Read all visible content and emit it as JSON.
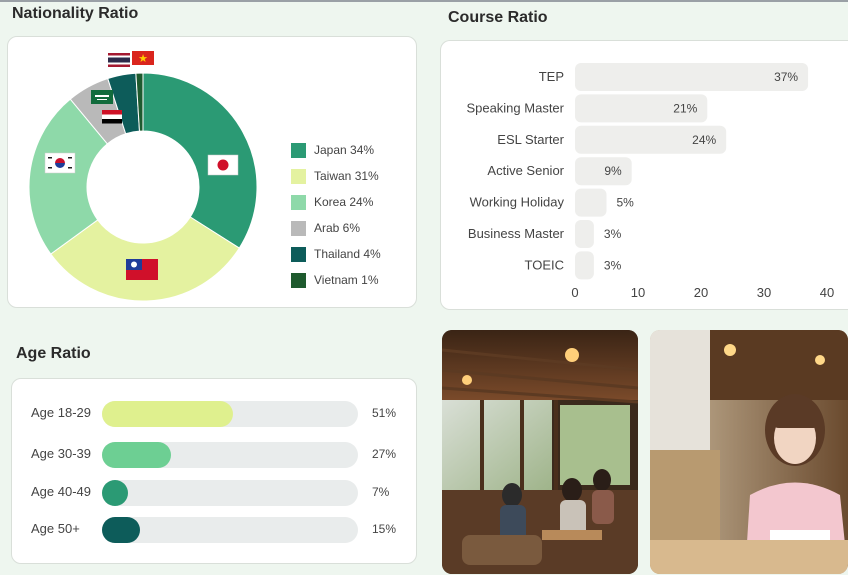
{
  "nationality": {
    "title": "Nationality Ratio",
    "chart_data": {
      "type": "pie",
      "title": "Nationality Ratio",
      "labels": [
        "Japan",
        "Taiwan",
        "Korea",
        "Arab",
        "Thailand",
        "Vietnam"
      ],
      "values": [
        34,
        31,
        24,
        6,
        4,
        1
      ],
      "legend": [
        "Japan 34%",
        "Taiwan 31%",
        "Korea 24%",
        "Arab 6%",
        "Thailand 4%",
        "Vietnam 1%"
      ],
      "colors": [
        "#2b9a74",
        "#e4f2a0",
        "#8ed9a9",
        "#b9b9b9",
        "#0d5c5a",
        "#1e5a2e"
      ],
      "flag_icons": [
        "japan-flag-icon",
        "taiwan-flag-icon",
        "korea-flag-icon",
        "saudi-flag-icon",
        "egypt-flag-icon",
        "thailand-flag-icon",
        "vietnam-flag-icon"
      ]
    }
  },
  "course": {
    "title": "Course Ratio",
    "chart_data": {
      "type": "bar",
      "orientation": "horizontal",
      "title": "Course Ratio",
      "categories": [
        "TEP",
        "Speaking Master",
        "ESL Starter",
        "Active Senior",
        "Working Holiday",
        "Business Master",
        "TOEIC"
      ],
      "values": [
        37,
        21,
        24,
        9,
        5,
        3,
        3
      ],
      "value_labels": [
        "37%",
        "21%",
        "24%",
        "9%",
        "5%",
        "3%",
        "3%"
      ],
      "xlim": [
        0,
        40
      ],
      "xticks": [
        0,
        10,
        20,
        30,
        40
      ],
      "xtick_labels": [
        "0",
        "10",
        "20",
        "30",
        "40"
      ],
      "bar_color": "#eeeeec"
    }
  },
  "age": {
    "title": "Age Ratio",
    "chart_data": {
      "type": "bar",
      "orientation": "horizontal",
      "title": "Age Ratio",
      "categories": [
        "Age 18-29",
        "Age 30-39",
        "Age 40-49",
        "Age 50+"
      ],
      "values": [
        51,
        27,
        7,
        15
      ],
      "value_labels": [
        "51%",
        "27%",
        "7%",
        "15%"
      ],
      "colors": [
        "#dff08e",
        "#6dcf93",
        "#2b9a74",
        "#0d5c5a"
      ],
      "xlim": [
        0,
        100
      ]
    }
  }
}
